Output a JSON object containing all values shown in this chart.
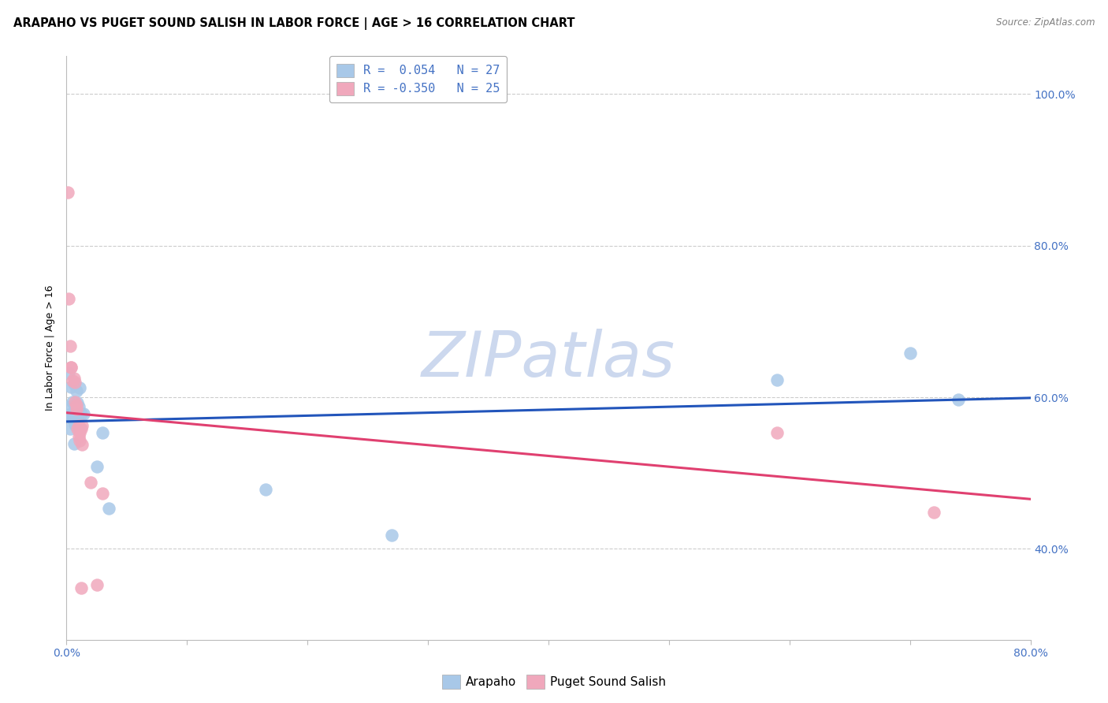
{
  "title": "ARAPAHO VS PUGET SOUND SALISH IN LABOR FORCE | AGE > 16 CORRELATION CHART",
  "source": "Source: ZipAtlas.com",
  "ylabel": "In Labor Force | Age > 16",
  "watermark": "ZIPatlas",
  "xlim": [
    0.0,
    0.8
  ],
  "ylim": [
    0.28,
    1.05
  ],
  "arapaho_color": "#a8c8e8",
  "arapaho_line_color": "#2255bb",
  "puget_color": "#f0a8bc",
  "puget_line_color": "#e04070",
  "arapaho_x": [
    0.001,
    0.002,
    0.002,
    0.003,
    0.004,
    0.004,
    0.005,
    0.005,
    0.006,
    0.006,
    0.007,
    0.007,
    0.008,
    0.009,
    0.009,
    0.01,
    0.011,
    0.012,
    0.014,
    0.025,
    0.03,
    0.035,
    0.165,
    0.27,
    0.59,
    0.7,
    0.74
  ],
  "arapaho_y": [
    0.588,
    0.632,
    0.574,
    0.558,
    0.614,
    0.578,
    0.594,
    0.572,
    0.539,
    0.618,
    0.564,
    0.588,
    0.608,
    0.573,
    0.593,
    0.588,
    0.613,
    0.578,
    0.578,
    0.508,
    0.553,
    0.453,
    0.478,
    0.418,
    0.623,
    0.658,
    0.597
  ],
  "puget_x": [
    0.001,
    0.002,
    0.003,
    0.004,
    0.004,
    0.005,
    0.006,
    0.007,
    0.007,
    0.008,
    0.008,
    0.009,
    0.01,
    0.01,
    0.011,
    0.011,
    0.012,
    0.012,
    0.013,
    0.013,
    0.02,
    0.025,
    0.03,
    0.59,
    0.72
  ],
  "puget_y": [
    0.87,
    0.73,
    0.668,
    0.64,
    0.64,
    0.622,
    0.625,
    0.62,
    0.594,
    0.584,
    0.59,
    0.558,
    0.548,
    0.563,
    0.543,
    0.553,
    0.558,
    0.348,
    0.538,
    0.563,
    0.488,
    0.353,
    0.473,
    0.553,
    0.448
  ],
  "grid_color": "#cccccc",
  "background_color": "#ffffff",
  "title_color": "#000000",
  "tick_color": "#4472c4",
  "tick_fontsize": 10,
  "axis_label_fontsize": 9,
  "watermark_color": "#ccd8ee",
  "watermark_fontsize": 58,
  "legend_text_color": "#4472c4",
  "source_color": "#808080"
}
